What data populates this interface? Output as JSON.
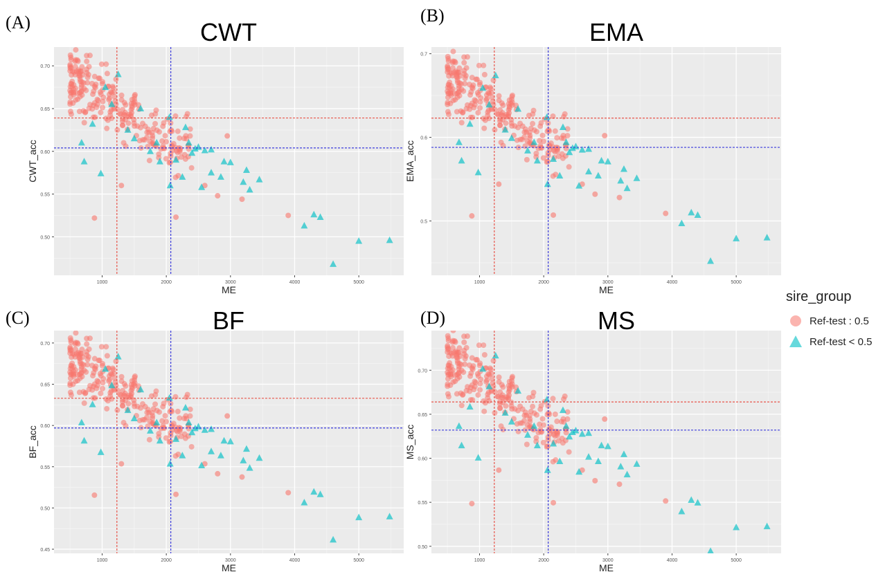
{
  "panels": [
    {
      "letter": "(A)",
      "title": "CWT"
    },
    {
      "letter": "(B)",
      "title": "EMA"
    },
    {
      "letter": "(C)",
      "title": "BF"
    },
    {
      "letter": "(D)",
      "title": "MS"
    }
  ],
  "legend": {
    "title": "sire_group",
    "items": [
      {
        "label": "Ref-test : 0.5",
        "shape": "circle",
        "color": "#F8766D"
      },
      {
        "label": "Ref-test < 0.5",
        "shape": "triangle",
        "color": "#00BFC4"
      }
    ]
  },
  "colors": {
    "ref_high": "#F8766D",
    "ref_low": "#00BFC4",
    "panel_bg": "#EBEBEB",
    "red_line": "#E8544A",
    "blue_line": "#3A3ADB"
  },
  "chart_data": [
    {
      "type": "scatter",
      "title": "CWT",
      "xlabel": "ME",
      "ylabel": "CWT_acc",
      "xlim": [
        250,
        5700
      ],
      "ylim": [
        0.455,
        0.722
      ],
      "xticks": [
        1000,
        2000,
        3000,
        4000,
        5000
      ],
      "yticks": [
        0.5,
        0.55,
        0.6,
        0.65,
        0.7
      ],
      "ytick_labels": [
        "0.50",
        "0.55",
        "0.60",
        "0.65",
        "0.70"
      ],
      "vlines": {
        "red": 1230,
        "blue": 2070
      },
      "hlines": {
        "red": 0.639,
        "blue": 0.604
      }
    },
    {
      "type": "scatter",
      "title": "EMA",
      "xlabel": "ME",
      "ylabel": "EMA_acc",
      "xlim": [
        250,
        5700
      ],
      "ylim": [
        0.435,
        0.708
      ],
      "xticks": [
        1000,
        2000,
        3000,
        4000,
        5000
      ],
      "yticks": [
        0.5,
        0.6,
        0.7
      ],
      "ytick_labels": [
        "0.5",
        "0.6",
        "0.7"
      ],
      "vlines": {
        "red": 1230,
        "blue": 2070
      },
      "hlines": {
        "red": 0.623,
        "blue": 0.588
      }
    },
    {
      "type": "scatter",
      "title": "BF",
      "xlabel": "ME",
      "ylabel": "BF_acc",
      "xlim": [
        250,
        5700
      ],
      "ylim": [
        0.445,
        0.715
      ],
      "xticks": [
        1000,
        2000,
        3000,
        4000,
        5000
      ],
      "yticks": [
        0.45,
        0.5,
        0.55,
        0.6,
        0.65,
        0.7
      ],
      "ytick_labels": [
        "0.45",
        "0.50",
        "0.55",
        "0.60",
        "0.65",
        "0.70"
      ],
      "vlines": {
        "red": 1230,
        "blue": 2070
      },
      "hlines": {
        "red": 0.633,
        "blue": 0.597
      }
    },
    {
      "type": "scatter",
      "title": "MS",
      "xlabel": "ME",
      "ylabel": "MS_acc",
      "xlim": [
        250,
        5700
      ],
      "ylim": [
        0.492,
        0.745
      ],
      "xticks": [
        1000,
        2000,
        3000,
        4000,
        5000
      ],
      "yticks": [
        0.5,
        0.55,
        0.6,
        0.65,
        0.7
      ],
      "ytick_labels": [
        "0.50",
        "0.55",
        "0.60",
        "0.65",
        "0.70"
      ],
      "vlines": {
        "red": 1230,
        "blue": 2070
      },
      "hlines": {
        "red": 0.664,
        "blue": 0.632
      }
    }
  ],
  "series_points": {
    "ref_high_outliers": [
      [
        880,
        0.522
      ],
      [
        2150,
        0.523
      ],
      [
        3180,
        0.544
      ],
      [
        3900,
        0.525
      ],
      [
        2950,
        0.618
      ],
      [
        2800,
        0.548
      ],
      [
        1300,
        0.56
      ],
      [
        2600,
        0.56
      ]
    ],
    "ref_low": [
      [
        680,
        0.61
      ],
      [
        720,
        0.588
      ],
      [
        980,
        0.574
      ],
      [
        1250,
        0.69
      ],
      [
        1050,
        0.675
      ],
      [
        1400,
        0.625
      ],
      [
        1600,
        0.65
      ],
      [
        1850,
        0.61
      ],
      [
        2050,
        0.64
      ],
      [
        2060,
        0.56
      ],
      [
        2150,
        0.59
      ],
      [
        2300,
        0.628
      ],
      [
        2350,
        0.61
      ],
      [
        2400,
        0.598
      ],
      [
        2450,
        0.603
      ],
      [
        2500,
        0.605
      ],
      [
        2600,
        0.601
      ],
      [
        2700,
        0.602
      ],
      [
        2900,
        0.588
      ],
      [
        3000,
        0.587
      ],
      [
        3200,
        0.564
      ],
      [
        3250,
        0.578
      ],
      [
        3300,
        0.555
      ],
      [
        3450,
        0.567
      ],
      [
        4150,
        0.513
      ],
      [
        4300,
        0.526
      ],
      [
        4400,
        0.523
      ],
      [
        4600,
        0.468
      ],
      [
        5000,
        0.495
      ],
      [
        5480,
        0.496
      ],
      [
        2550,
        0.558
      ],
      [
        2250,
        0.57
      ],
      [
        1900,
        0.588
      ],
      [
        850,
        0.632
      ],
      [
        1150,
        0.655
      ],
      [
        1500,
        0.615
      ],
      [
        1750,
        0.6
      ],
      [
        2700,
        0.575
      ],
      [
        2850,
        0.57
      ]
    ]
  }
}
